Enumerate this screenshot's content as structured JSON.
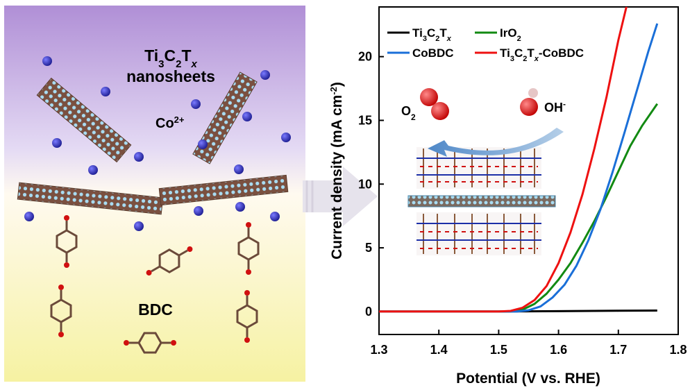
{
  "illustration": {
    "nanosheets_label_line1": "Ti3C2Tx",
    "nanosheets_label_line2": "nanosheets",
    "cobalt_label": "Co2+",
    "linker_label": "BDC",
    "colors": {
      "cobalt": "#2a2ab5",
      "carbon": "#6b4a3a",
      "oxygen": "#d01010",
      "ti": "#8a5a3a",
      "surface": "#9fd8f0"
    }
  },
  "chart_data": {
    "type": "line",
    "xlabel": "Potential (V vs. RHE)",
    "ylabel": "Current density (mA cm-2)",
    "xlim": [
      1.3,
      1.8
    ],
    "ylim": [
      -1.8,
      23.9
    ],
    "xticks": [
      "1.3",
      "1.4",
      "1.5",
      "1.6",
      "1.7",
      "1.8"
    ],
    "yticks": [
      "0",
      "5",
      "10",
      "15",
      "20"
    ],
    "legend_placement": "top-left",
    "inset_labels": {
      "o2": "O2",
      "oh": "OH-"
    },
    "series": [
      {
        "name": "Ti3C2Tx",
        "color": "#000000",
        "x": [
          1.3,
          1.5,
          1.6,
          1.7,
          1.765
        ],
        "y": [
          0,
          0,
          0.03,
          0.06,
          0.08
        ]
      },
      {
        "name": "IrO2",
        "color": "#128a12",
        "x": [
          1.3,
          1.52,
          1.54,
          1.56,
          1.58,
          1.6,
          1.62,
          1.64,
          1.66,
          1.68,
          1.7,
          1.72,
          1.74,
          1.765
        ],
        "y": [
          0,
          0,
          0.15,
          0.6,
          1.4,
          2.5,
          3.8,
          5.4,
          7.1,
          9.0,
          11.0,
          13.0,
          14.6,
          16.3
        ]
      },
      {
        "name": "CoBDC",
        "color": "#1a6fd8",
        "x": [
          1.3,
          1.53,
          1.55,
          1.57,
          1.59,
          1.61,
          1.63,
          1.65,
          1.67,
          1.69,
          1.71,
          1.73,
          1.75,
          1.765
        ],
        "y": [
          0,
          0,
          0.1,
          0.4,
          1.1,
          2.1,
          3.6,
          5.6,
          8.0,
          10.9,
          14.0,
          17.2,
          20.4,
          22.6
        ]
      },
      {
        "name": "Ti3C2Tx-CoBDC",
        "color": "#ee1111",
        "x": [
          1.3,
          1.5,
          1.52,
          1.54,
          1.56,
          1.58,
          1.6,
          1.62,
          1.64,
          1.66,
          1.68,
          1.7,
          1.715
        ],
        "y": [
          0,
          0,
          0.05,
          0.3,
          0.9,
          2.0,
          3.8,
          6.2,
          9.2,
          12.8,
          16.8,
          21.3,
          24.2
        ]
      }
    ]
  }
}
